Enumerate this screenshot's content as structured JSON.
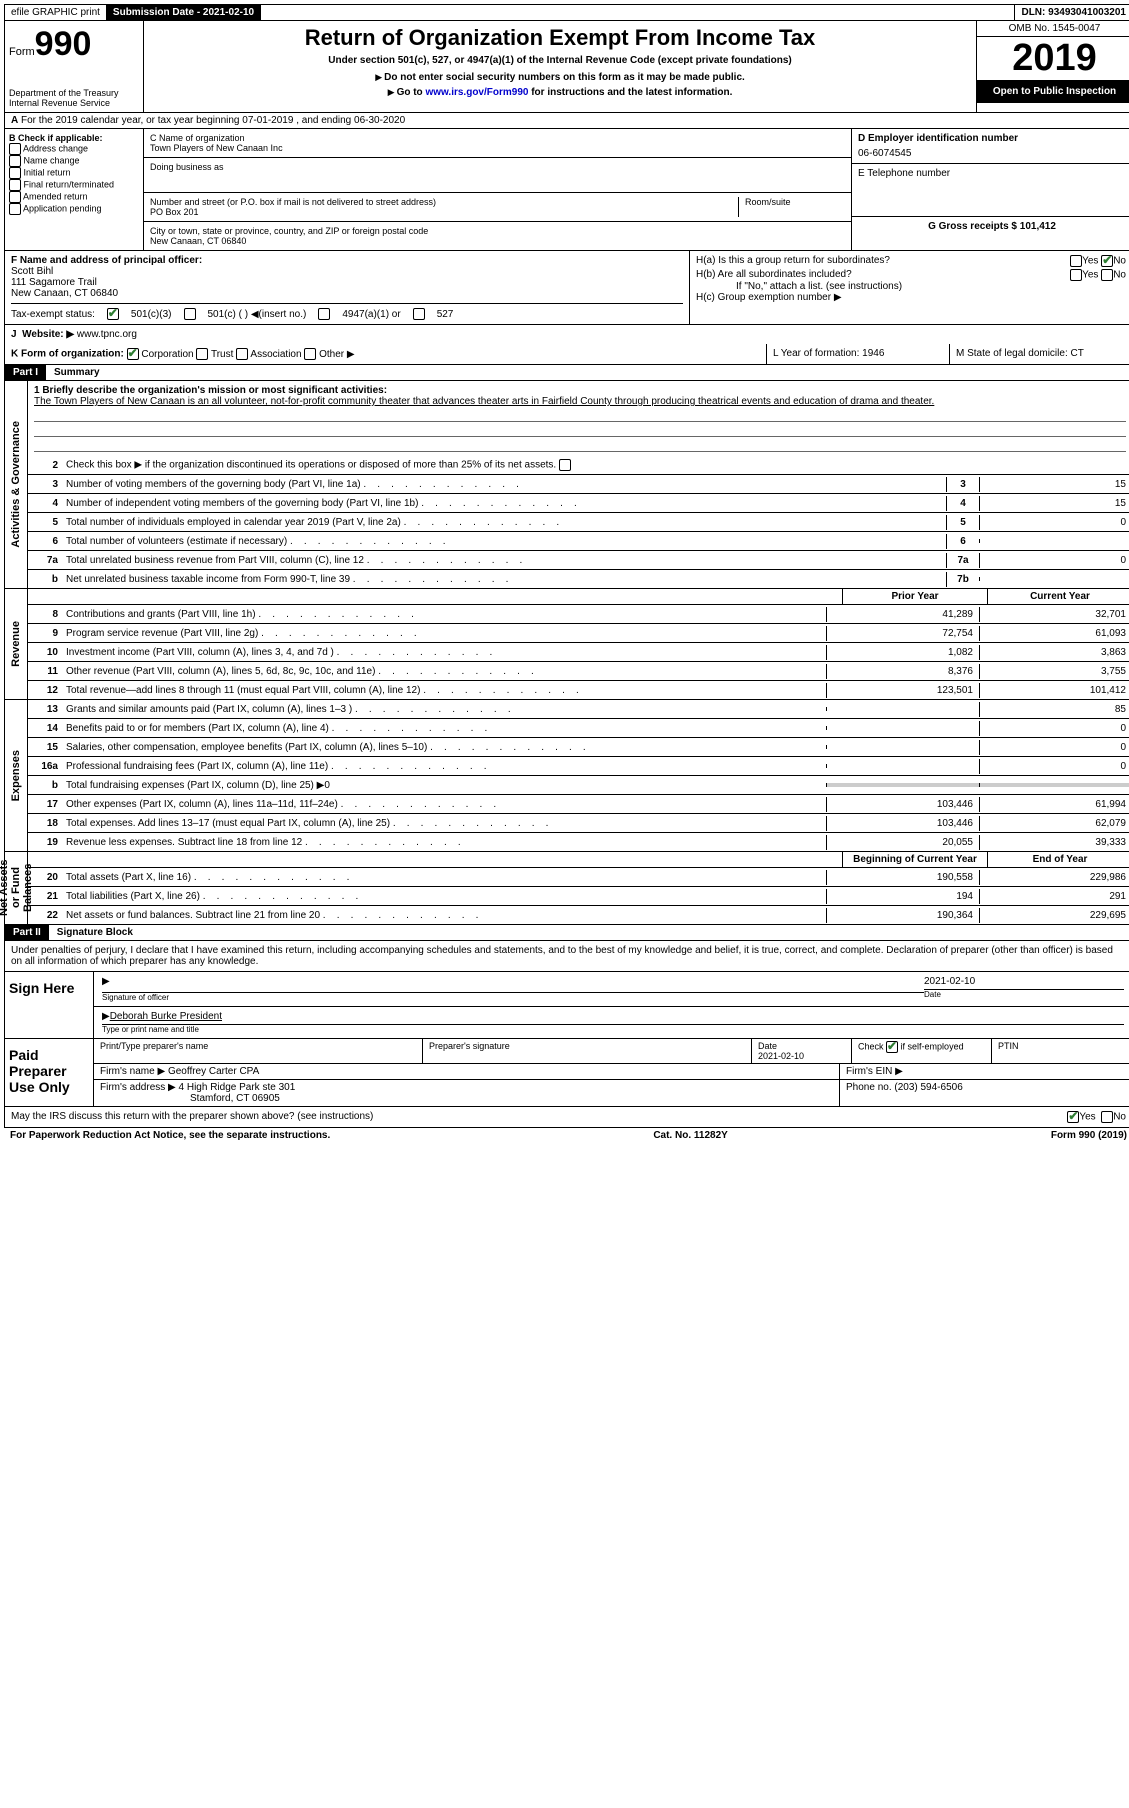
{
  "topbar": {
    "efile": "efile GRAPHIC print",
    "submission_label": "Submission Date - 2021-02-10",
    "dln": "DLN: 93493041003201"
  },
  "header": {
    "form_word": "Form",
    "form_num": "990",
    "dept1": "Department of the Treasury",
    "dept2": "Internal Revenue Service",
    "title": "Return of Organization Exempt From Income Tax",
    "subtitle": "Under section 501(c), 527, or 4947(a)(1) of the Internal Revenue Code (except private foundations)",
    "note1": "Do not enter social security numbers on this form as it may be made public.",
    "note2_pre": "Go to ",
    "note2_link": "www.irs.gov/Form990",
    "note2_post": " for instructions and the latest information.",
    "omb": "OMB No. 1545-0047",
    "year": "2019",
    "open_public": "Open to Public Inspection"
  },
  "lineA": "For the 2019 calendar year, or tax year beginning 07-01-2019    , and ending 06-30-2020",
  "boxB": {
    "label": "B Check if applicable:",
    "opts": [
      "Address change",
      "Name change",
      "Initial return",
      "Final return/terminated",
      "Amended return",
      "Application pending"
    ]
  },
  "boxC": {
    "name_label": "C Name of organization",
    "name": "Town Players of New Canaan Inc",
    "dba_label": "Doing business as",
    "addr_label": "Number and street (or P.O. box if mail is not delivered to street address)",
    "room_label": "Room/suite",
    "addr": "PO Box 201",
    "city_label": "City or town, state or province, country, and ZIP or foreign postal code",
    "city": "New Canaan, CT  06840"
  },
  "boxD": {
    "label": "D Employer identification number",
    "ein": "06-6074545",
    "tel_label": "E Telephone number",
    "gross_label": "G Gross receipts $ 101,412"
  },
  "boxF": {
    "label": "F  Name and address of principal officer:",
    "name": "Scott Bihl",
    "addr1": "111 Sagamore Trail",
    "addr2": "New Canaan, CT  06840"
  },
  "boxH": {
    "ha": "H(a)  Is this a group return for subordinates?",
    "hb": "H(b)  Are all subordinates included?",
    "hb_note": "If \"No,\" attach a list. (see instructions)",
    "hc": "H(c)  Group exemption number ▶",
    "yes": "Yes",
    "no": "No"
  },
  "taxexempt": {
    "label": "Tax-exempt status:",
    "opt1": "501(c)(3)",
    "opt2": "501(c) (  ) ◀(insert no.)",
    "opt3": "4947(a)(1) or",
    "opt4": "527"
  },
  "website": {
    "label": "Website: ▶",
    "value": "www.tpnc.org"
  },
  "lineK": {
    "label": "K Form of organization:",
    "opts": [
      "Corporation",
      "Trust",
      "Association",
      "Other ▶"
    ],
    "L": "L Year of formation: 1946",
    "M": "M State of legal domicile: CT"
  },
  "part1": {
    "label": "Part I",
    "title": "Summary"
  },
  "summary": {
    "q1_label": "1  Briefly describe the organization's mission or most significant activities:",
    "q1_text": "The Town Players of New Canaan is an all volunteer, not-for-profit community theater that advances theater arts in Fairfield County through producing theatrical events and education of drama and theater.",
    "q2": "Check this box ▶        if the organization discontinued its operations or disposed of more than 25% of its net assets.",
    "lines_gov": [
      {
        "n": "3",
        "d": "Number of voting members of the governing body (Part VI, line 1a)",
        "box": "3",
        "v": "15"
      },
      {
        "n": "4",
        "d": "Number of independent voting members of the governing body (Part VI, line 1b)",
        "box": "4",
        "v": "15"
      },
      {
        "n": "5",
        "d": "Total number of individuals employed in calendar year 2019 (Part V, line 2a)",
        "box": "5",
        "v": "0"
      },
      {
        "n": "6",
        "d": "Total number of volunteers (estimate if necessary)",
        "box": "6",
        "v": ""
      },
      {
        "n": "7a",
        "d": "Total unrelated business revenue from Part VIII, column (C), line 12",
        "box": "7a",
        "v": "0"
      },
      {
        "n": "b",
        "d": "Net unrelated business taxable income from Form 990-T, line 39",
        "box": "7b",
        "v": ""
      }
    ],
    "hdr_prior": "Prior Year",
    "hdr_current": "Current Year",
    "revenue": [
      {
        "n": "8",
        "d": "Contributions and grants (Part VIII, line 1h)",
        "p": "41,289",
        "c": "32,701"
      },
      {
        "n": "9",
        "d": "Program service revenue (Part VIII, line 2g)",
        "p": "72,754",
        "c": "61,093"
      },
      {
        "n": "10",
        "d": "Investment income (Part VIII, column (A), lines 3, 4, and 7d )",
        "p": "1,082",
        "c": "3,863"
      },
      {
        "n": "11",
        "d": "Other revenue (Part VIII, column (A), lines 5, 6d, 8c, 9c, 10c, and 11e)",
        "p": "8,376",
        "c": "3,755"
      },
      {
        "n": "12",
        "d": "Total revenue—add lines 8 through 11 (must equal Part VIII, column (A), line 12)",
        "p": "123,501",
        "c": "101,412"
      }
    ],
    "expenses": [
      {
        "n": "13",
        "d": "Grants and similar amounts paid (Part IX, column (A), lines 1–3 )",
        "p": "",
        "c": "85"
      },
      {
        "n": "14",
        "d": "Benefits paid to or for members (Part IX, column (A), line 4)",
        "p": "",
        "c": "0"
      },
      {
        "n": "15",
        "d": "Salaries, other compensation, employee benefits (Part IX, column (A), lines 5–10)",
        "p": "",
        "c": "0"
      },
      {
        "n": "16a",
        "d": "Professional fundraising fees (Part IX, column (A), line 11e)",
        "p": "",
        "c": "0"
      },
      {
        "n": "b",
        "d": "Total fundraising expenses (Part IX, column (D), line 25) ▶0",
        "grey": true
      },
      {
        "n": "17",
        "d": "Other expenses (Part IX, column (A), lines 11a–11d, 11f–24e)",
        "p": "103,446",
        "c": "61,994"
      },
      {
        "n": "18",
        "d": "Total expenses. Add lines 13–17 (must equal Part IX, column (A), line 25)",
        "p": "103,446",
        "c": "62,079"
      },
      {
        "n": "19",
        "d": "Revenue less expenses. Subtract line 18 from line 12",
        "p": "20,055",
        "c": "39,333"
      }
    ],
    "hdr_begin": "Beginning of Current Year",
    "hdr_end": "End of Year",
    "netassets": [
      {
        "n": "20",
        "d": "Total assets (Part X, line 16)",
        "p": "190,558",
        "c": "229,986"
      },
      {
        "n": "21",
        "d": "Total liabilities (Part X, line 26)",
        "p": "194",
        "c": "291"
      },
      {
        "n": "22",
        "d": "Net assets or fund balances. Subtract line 21 from line 20",
        "p": "190,364",
        "c": "229,695"
      }
    ]
  },
  "vert": {
    "gov": "Activities & Governance",
    "rev": "Revenue",
    "exp": "Expenses",
    "net": "Net Assets or Fund Balances"
  },
  "part2": {
    "label": "Part II",
    "title": "Signature Block",
    "declaration": "Under penalties of perjury, I declare that I have examined this return, including accompanying schedules and statements, and to the best of my knowledge and belief, it is true, correct, and complete. Declaration of preparer (other than officer) is based on all information of which preparer has any knowledge."
  },
  "sign": {
    "left": "Sign Here",
    "sig_label": "Signature of officer",
    "date": "2021-02-10",
    "date_label": "Date",
    "name": "Deborah Burke President",
    "name_label": "Type or print name and title"
  },
  "preparer": {
    "left": "Paid Preparer Use Only",
    "h1": "Print/Type preparer's name",
    "h2": "Preparer's signature",
    "h3_label": "Date",
    "h3": "2021-02-10",
    "h4_pre": "Check",
    "h4_post": "if self-employed",
    "h5": "PTIN",
    "firm_label": "Firm's name    ▶",
    "firm": "Geoffrey Carter CPA",
    "ein_label": "Firm's EIN ▶",
    "addr_label": "Firm's address ▶",
    "addr1": "4 High Ridge Park ste 301",
    "addr2": "Stamford, CT  06905",
    "phone_label": "Phone no. (203) 594-6506"
  },
  "footer": {
    "discuss": "May the IRS discuss this return with the preparer shown above? (see instructions)",
    "yes": "Yes",
    "no": "No",
    "paperwork": "For Paperwork Reduction Act Notice, see the separate instructions.",
    "cat": "Cat. No. 11282Y",
    "form": "Form 990 (2019)"
  }
}
